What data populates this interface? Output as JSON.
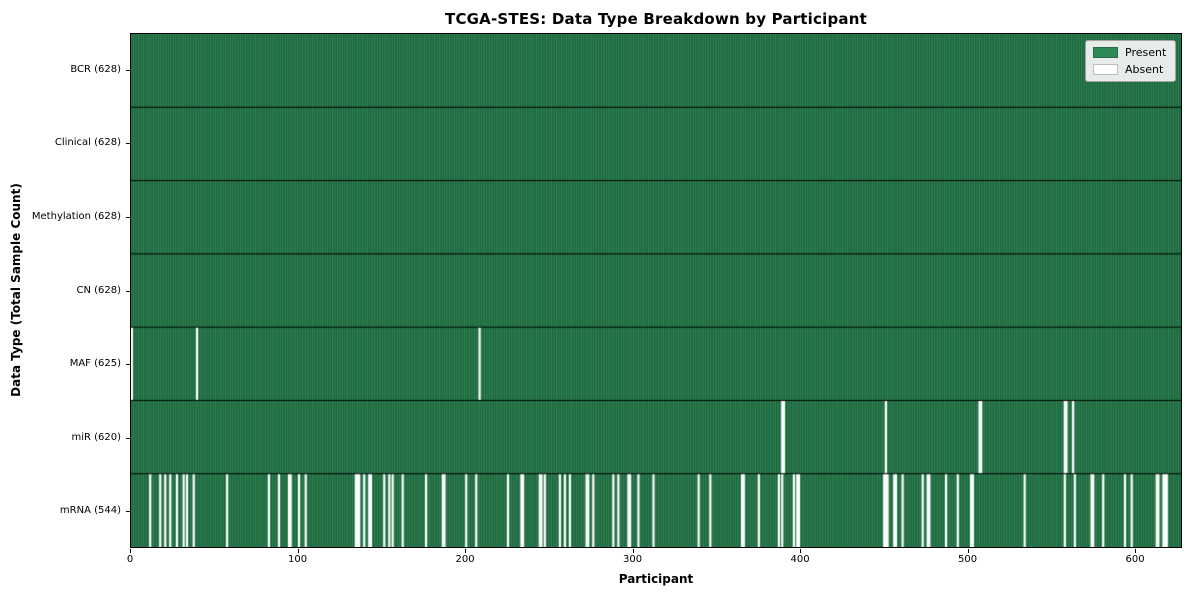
{
  "figure": {
    "title": "TCGA-STES: Data Type Breakdown by Participant",
    "xlabel": "Participant",
    "ylabel": "Data Type (Total Sample Count)"
  },
  "legend": {
    "position": "upper right",
    "items": [
      {
        "label": "Present",
        "color": "#2e8b57",
        "border": "#2a6b47"
      },
      {
        "label": "Absent",
        "color": "#ffffff",
        "border": "#bdbdbd"
      }
    ]
  },
  "chart_data": {
    "type": "heatmap",
    "title": "TCGA-STES: Data Type Breakdown by Participant",
    "xlabel": "Participant",
    "ylabel": "Data Type (Total Sample Count)",
    "n_participants": 628,
    "xlim": [
      0,
      628
    ],
    "x_ticks": [
      0,
      100,
      200,
      300,
      400,
      500,
      600
    ],
    "grid": false,
    "legend_position": "upper right",
    "colors": {
      "present": "#2e8b57",
      "absent": "#ffffff",
      "bar_edge": "rgba(0,0,0,0.42)",
      "row_separator": "#000000"
    },
    "rows": [
      {
        "label": "BCR (628)",
        "data_type": "BCR",
        "present_count": 628,
        "absent_participants": []
      },
      {
        "label": "Clinical (628)",
        "data_type": "Clinical",
        "present_count": 628,
        "absent_participants": []
      },
      {
        "label": "Methylation (628)",
        "data_type": "Methylation",
        "present_count": 628,
        "absent_participants": []
      },
      {
        "label": "CN (628)",
        "data_type": "CN",
        "present_count": 628,
        "absent_participants": []
      },
      {
        "label": "MAF (625)",
        "data_type": "MAF",
        "present_count": 625,
        "absent_participants": [
          0,
          39,
          208
        ]
      },
      {
        "label": "miR (620)",
        "data_type": "miR",
        "present_count": 620,
        "absent_participants": [
          389,
          390,
          451,
          507,
          508,
          558,
          559,
          563
        ]
      },
      {
        "label": "mRNA (544)",
        "data_type": "mRNA",
        "present_count": 544,
        "absent_participants": [
          11,
          17,
          20,
          23,
          27,
          31,
          33,
          37,
          57,
          82,
          88,
          94,
          95,
          100,
          104,
          134,
          135,
          136,
          139,
          142,
          143,
          151,
          154,
          156,
          162,
          176,
          186,
          187,
          200,
          206,
          225,
          233,
          234,
          244,
          245,
          247,
          256,
          259,
          262,
          272,
          273,
          276,
          288,
          291,
          297,
          298,
          303,
          312,
          339,
          346,
          365,
          366,
          375,
          387,
          389,
          396,
          398,
          399,
          450,
          451,
          452,
          456,
          457,
          461,
          473,
          476,
          477,
          487,
          494,
          502,
          503,
          534,
          558,
          564,
          574,
          575,
          581,
          594,
          598,
          613,
          614,
          617,
          618,
          619
        ]
      }
    ]
  },
  "layout_labels": {
    "x_tick_prefix": "",
    "y_tick_suffix": ""
  }
}
